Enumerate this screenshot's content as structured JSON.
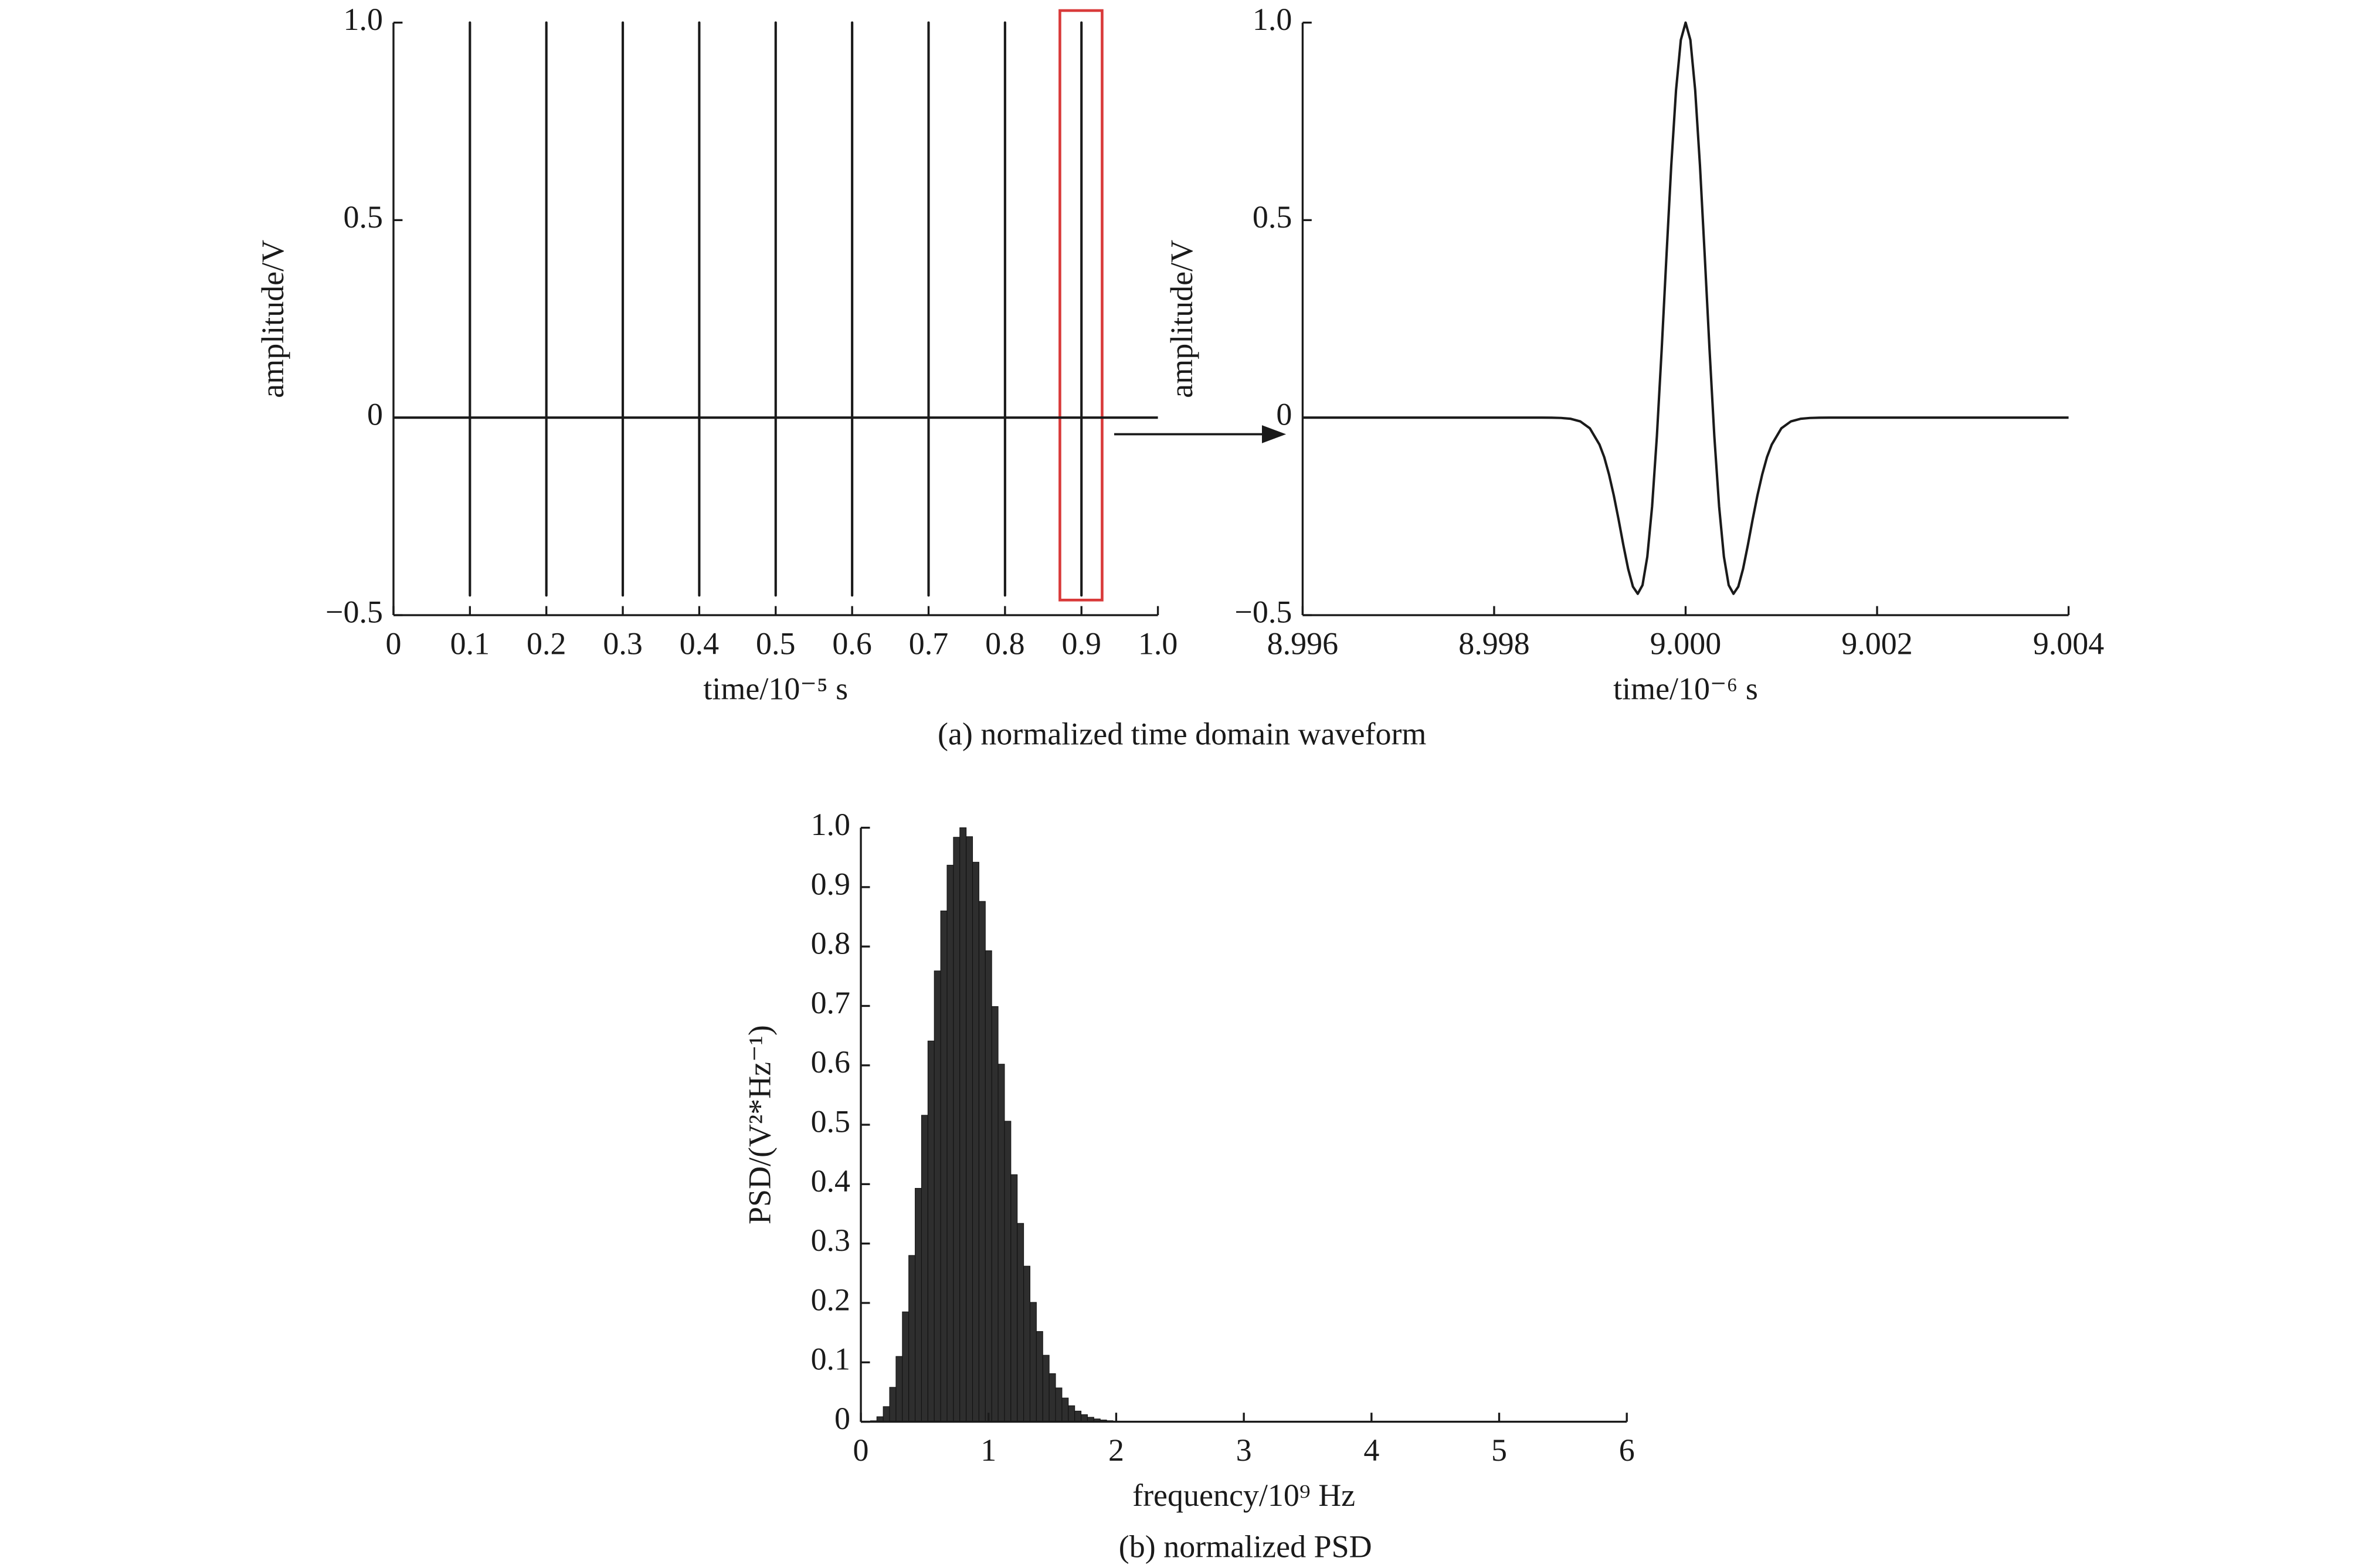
{
  "chart_data": [
    {
      "type": "line",
      "xlabel": "time/10⁻⁵ s",
      "ylabel": "amplitude/V",
      "x": [
        0,
        0.1,
        0.1,
        0.1,
        0.1,
        0.2,
        0.2,
        0.2,
        0.2,
        0.3,
        0.3,
        0.3,
        0.3,
        0.4,
        0.4,
        0.4,
        0.4,
        0.5,
        0.5,
        0.5,
        0.5,
        0.6,
        0.6,
        0.6,
        0.6,
        0.7,
        0.7,
        0.7,
        0.7,
        0.8,
        0.8,
        0.8,
        0.8,
        0.9,
        0.9,
        0.9,
        0.9,
        1
      ],
      "values": [
        0,
        0,
        -0.45,
        1,
        0,
        0,
        -0.45,
        1,
        0,
        0,
        -0.45,
        1,
        0,
        0,
        -0.45,
        1,
        0,
        0,
        -0.45,
        1,
        0,
        0,
        -0.45,
        1,
        0,
        0,
        -0.45,
        1,
        0,
        0,
        -0.45,
        1,
        0,
        0,
        -0.45,
        1,
        0,
        0
      ],
      "color": "#1a1a1a",
      "xlim": [
        0,
        1
      ],
      "ylim": [
        -0.5,
        1
      ],
      "xticks": [
        0,
        0.1,
        0.2,
        0.3,
        0.4,
        0.5,
        0.6,
        0.7,
        0.8,
        0.9,
        {
          "value": 1,
          "label": "1.0"
        }
      ],
      "yticks": [
        {
          "value": -0.5,
          "label": "−0.5"
        },
        0,
        0.5,
        {
          "value": 1,
          "label": "1.0"
        }
      ]
    },
    {
      "type": "line",
      "xlabel": "time/10⁻⁶ s",
      "ylabel": "amplitude/V",
      "x": [
        8.996,
        8.998,
        8.9985,
        8.9986,
        8.9987,
        8.9988,
        8.9989,
        8.999,
        8.9991,
        8.99915,
        8.9992,
        8.99925,
        8.9993,
        8.99935,
        8.9994,
        8.99945,
        8.9995,
        8.99955,
        8.9996,
        8.99965,
        8.9997,
        8.99975,
        8.9998,
        8.99985,
        8.9999,
        8.99995,
        9,
        9.00005,
        9.0001,
        9.00015,
        9.0002,
        9.00025,
        9.0003,
        9.00035,
        9.0004,
        9.00045,
        9.0005,
        9.00055,
        9.0006,
        9.00065,
        9.0007,
        9.00075,
        9.0008,
        9.00085,
        9.0009,
        9.001,
        9.0011,
        9.0012,
        9.0013,
        9.0014,
        9.0015,
        9.002,
        9.004
      ],
      "values": [
        0,
        0,
        0,
        -0.0001,
        -0.0008,
        -0.003,
        -0.0095,
        -0.027,
        -0.068,
        -0.1,
        -0.144,
        -0.197,
        -0.258,
        -0.323,
        -0.383,
        -0.428,
        -0.446,
        -0.424,
        -0.352,
        -0.225,
        -0.047,
        0.172,
        0.409,
        0.638,
        0.829,
        0.956,
        1,
        0.956,
        0.829,
        0.638,
        0.409,
        0.172,
        -0.047,
        -0.225,
        -0.352,
        -0.424,
        -0.446,
        -0.428,
        -0.383,
        -0.323,
        -0.258,
        -0.197,
        -0.144,
        -0.1,
        -0.068,
        -0.027,
        -0.0095,
        -0.003,
        -0.0008,
        -0.0001,
        0,
        0,
        0
      ],
      "color": "#1a1a1a",
      "xlim": [
        8.996,
        9.004
      ],
      "ylim": [
        -0.5,
        1
      ],
      "xticks": [
        8.996,
        8.998,
        {
          "value": 9,
          "label": "9.000"
        },
        9.002,
        9.004
      ],
      "yticks": [
        {
          "value": -0.5,
          "label": "−0.5"
        },
        0,
        0.5,
        {
          "value": 1,
          "label": "1.0"
        }
      ]
    },
    {
      "type": "bar",
      "xlabel": "frequency/10⁹ Hz",
      "ylabel": "PSD/(V²*Hz⁻¹)",
      "x": [
        0.05,
        0.1,
        0.15,
        0.2,
        0.25,
        0.3,
        0.35,
        0.4,
        0.45,
        0.5,
        0.55,
        0.6,
        0.65,
        0.7,
        0.75,
        0.8,
        0.85,
        0.9,
        0.95,
        1,
        1.05,
        1.1,
        1.15,
        1.2,
        1.25,
        1.3,
        1.35,
        1.4,
        1.45,
        1.5,
        1.55,
        1.6,
        1.65,
        1.7,
        1.75,
        1.8,
        1.85,
        1.9,
        1.95,
        2
      ],
      "values": [
        0.0001,
        0.0017,
        0.0085,
        0.0255,
        0.058,
        0.11,
        0.185,
        0.28,
        0.393,
        0.516,
        0.641,
        0.759,
        0.86,
        0.937,
        0.984,
        1,
        0.985,
        0.942,
        0.876,
        0.793,
        0.699,
        0.602,
        0.506,
        0.416,
        0.334,
        0.262,
        0.201,
        0.152,
        0.112,
        0.081,
        0.057,
        0.04,
        0.027,
        0.018,
        0.012,
        0.0076,
        0.0048,
        0.003,
        0.0018,
        0.0011
      ],
      "color": "#2e2e2e",
      "xlim": [
        0,
        6
      ],
      "ylim": [
        0,
        1
      ],
      "xticks": [
        0,
        1,
        2,
        3,
        4,
        5,
        6
      ],
      "yticks": [
        0,
        0.1,
        0.2,
        0.3,
        0.4,
        0.5,
        0.6,
        0.7,
        0.8,
        0.9,
        {
          "value": 1,
          "label": "1.0"
        }
      ]
    }
  ],
  "captions": [
    "(a) normalized time domain waveform",
    "(b) normalized PSD"
  ]
}
